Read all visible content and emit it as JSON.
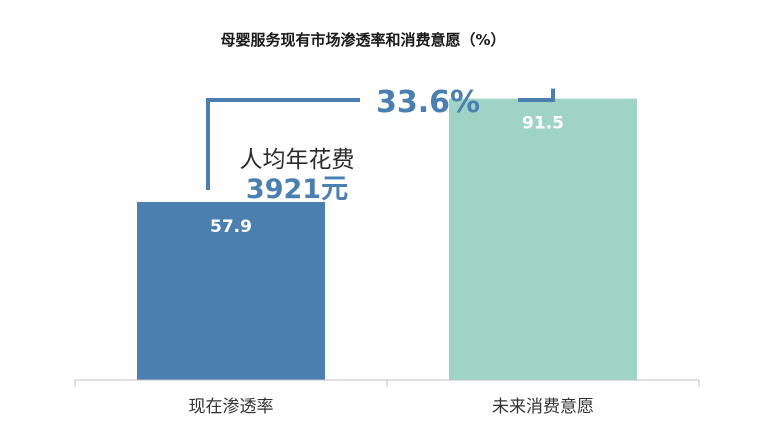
{
  "chart_data": {
    "type": "bar",
    "title": "母婴服务现有市场渗透率和消费意愿（%）",
    "categories": [
      "现在渗透率",
      "未来消费意愿"
    ],
    "values": [
      57.9,
      91.5
    ],
    "value_labels": [
      "57.9",
      "91.5"
    ],
    "ylim": [
      0,
      100
    ],
    "grid": false,
    "legend": "none",
    "difference_label": "33.6%",
    "annotation": {
      "line1": "人均年花费",
      "line2": "3921元"
    }
  },
  "colors": {
    "bar_1": "#4a7fb0",
    "bar_2": "#9fd3c6",
    "accent": "#4a7fb0",
    "axis": "#bfbfbf"
  }
}
